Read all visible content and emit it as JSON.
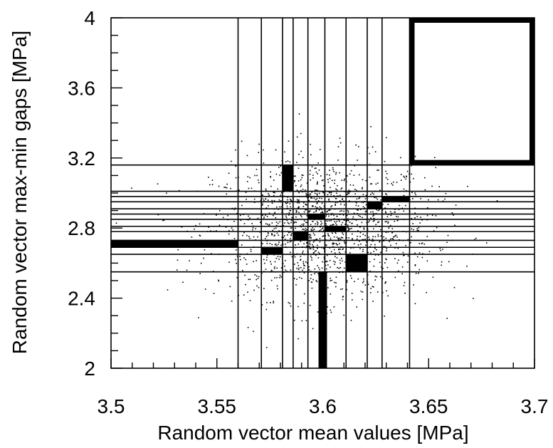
{
  "chart_data": {
    "type": "scatter",
    "title": "",
    "xlabel": "Random vector mean values [MPa]",
    "ylabel": "Random vector max-min gaps [MPa]",
    "xlim": [
      3.5,
      3.7
    ],
    "ylim": [
      2.0,
      4.0
    ],
    "xticks": [
      3.5,
      3.55,
      3.6,
      3.65,
      3.7
    ],
    "xtick_labels": [
      "3.5",
      "3.55",
      "3.6",
      "3.65",
      "3.7"
    ],
    "yticks": [
      2.0,
      2.4,
      2.8,
      3.2,
      3.6,
      4.0
    ],
    "ytick_labels": [
      "2",
      "2.4",
      "2.8",
      "3.2",
      "3.6",
      "4"
    ],
    "x_minor_step": 0.01,
    "y_minor_step": 0.1,
    "grid": false,
    "legend": "none",
    "scatter_distribution": {
      "description": "about 1500 random samples",
      "count": 1500,
      "mean_x": 3.6,
      "sd_x": 0.026,
      "mean_y": 2.8,
      "sd_y": 0.2
    },
    "partition_lines_x": [
      3.56,
      3.571,
      3.581,
      3.586,
      3.593,
      3.601,
      3.611,
      3.621,
      3.628,
      3.641
    ],
    "partition_lines_y": [
      2.55,
      2.65,
      2.69,
      2.73,
      2.78,
      2.81,
      2.85,
      2.88,
      2.91,
      2.95,
      2.98,
      3.01,
      3.16
    ],
    "highlight_cells": [
      {
        "x": [
          3.5,
          3.56
        ],
        "y": [
          2.69,
          2.73
        ]
      },
      {
        "x": [
          3.571,
          3.581
        ],
        "y": [
          2.65,
          2.69
        ]
      },
      {
        "x": [
          3.581,
          3.586
        ],
        "y": [
          3.01,
          3.16
        ]
      },
      {
        "x": [
          3.586,
          3.593
        ],
        "y": [
          2.73,
          2.78
        ]
      },
      {
        "x": [
          3.593,
          3.601
        ],
        "y": [
          2.85,
          2.88
        ]
      },
      {
        "x": [
          3.601,
          3.611
        ],
        "y": [
          2.78,
          2.81
        ]
      },
      {
        "x": [
          3.598,
          3.602
        ],
        "y": [
          2.0,
          2.55
        ]
      },
      {
        "x": [
          3.611,
          3.621
        ],
        "y": [
          2.55,
          2.65
        ]
      },
      {
        "x": [
          3.621,
          3.628
        ],
        "y": [
          2.91,
          2.95
        ]
      },
      {
        "x": [
          3.628,
          3.641
        ],
        "y": [
          2.95,
          2.98
        ]
      }
    ],
    "outlined_cells": [
      {
        "x": [
          3.641,
          3.7
        ],
        "y": [
          3.16,
          4.0
        ]
      }
    ]
  }
}
